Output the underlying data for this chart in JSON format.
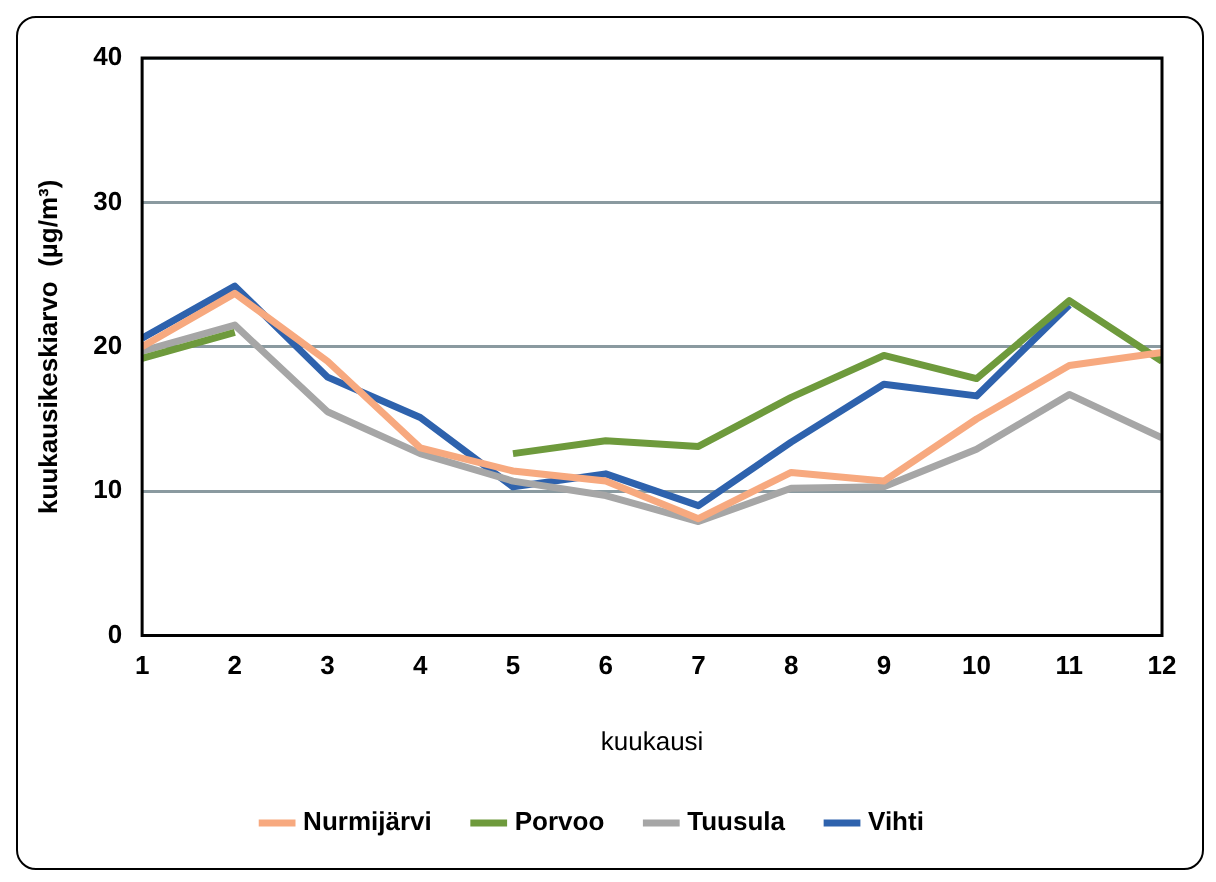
{
  "chart_data": {
    "type": "line",
    "xlabel": "kuukausi",
    "ylabel": "kuukausikeskiarvo  (µg/m³)",
    "x": [
      1,
      2,
      3,
      4,
      5,
      6,
      7,
      8,
      9,
      10,
      11,
      12
    ],
    "xlim": [
      1,
      12
    ],
    "xticks": [
      1,
      2,
      3,
      4,
      5,
      6,
      7,
      8,
      9,
      10,
      11,
      12
    ],
    "ylim": [
      0,
      40
    ],
    "yticks": [
      0,
      10,
      20,
      30,
      40
    ],
    "grid": "y",
    "legend": "bottom",
    "marker": "none",
    "line_style": "solid",
    "series": [
      {
        "name": "Nurmijärvi",
        "color": "#f7a97f",
        "values": [
          20,
          23.7,
          19,
          13,
          11.4,
          10.7,
          8.1,
          11.3,
          10.7,
          15,
          18.7,
          19.6
        ]
      },
      {
        "name": "Porvoo",
        "color": "#6e9a3c",
        "values": [
          19.2,
          21,
          null,
          null,
          12.6,
          13.5,
          13.1,
          16.5,
          19.4,
          17.8,
          23.2,
          19
        ]
      },
      {
        "name": "Tuusula",
        "color": "#a6a6a6",
        "values": [
          19.7,
          21.5,
          15.5,
          12.6,
          10.7,
          9.7,
          7.9,
          10.2,
          10.3,
          12.9,
          16.7,
          13.7
        ]
      },
      {
        "name": "Vihti",
        "color": "#2e62ad",
        "values": [
          20.6,
          24.2,
          17.9,
          15.1,
          10.3,
          11.2,
          9.0,
          13.4,
          17.4,
          16.6,
          22.9,
          null
        ]
      }
    ]
  }
}
